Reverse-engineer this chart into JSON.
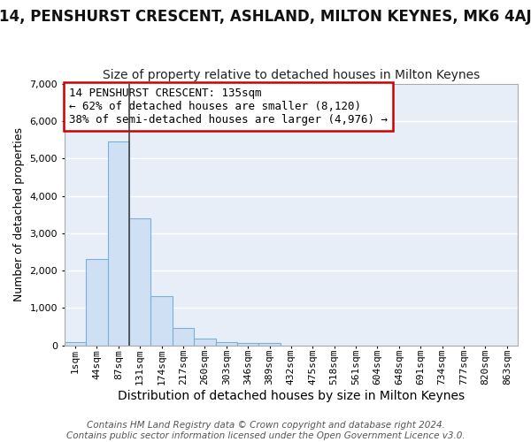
{
  "title": "14, PENSHURST CRESCENT, ASHLAND, MILTON KEYNES, MK6 4AJ",
  "subtitle": "Size of property relative to detached houses in Milton Keynes",
  "xlabel": "Distribution of detached houses by size in Milton Keynes",
  "ylabel": "Number of detached properties",
  "footer_line1": "Contains HM Land Registry data © Crown copyright and database right 2024.",
  "footer_line2": "Contains public sector information licensed under the Open Government Licence v3.0.",
  "categories": [
    "1sqm",
    "44sqm",
    "87sqm",
    "131sqm",
    "174sqm",
    "217sqm",
    "260sqm",
    "303sqm",
    "346sqm",
    "389sqm",
    "432sqm",
    "475sqm",
    "518sqm",
    "561sqm",
    "604sqm",
    "648sqm",
    "691sqm",
    "734sqm",
    "777sqm",
    "820sqm",
    "863sqm"
  ],
  "values": [
    100,
    2300,
    5450,
    3400,
    1320,
    460,
    190,
    90,
    70,
    55,
    0,
    0,
    0,
    0,
    0,
    0,
    0,
    0,
    0,
    0,
    0
  ],
  "bar_color": "#cfe0f4",
  "bar_edge_color": "#7ab0d8",
  "annotation_text": "14 PENSHURST CRESCENT: 135sqm\n← 62% of detached houses are smaller (8,120)\n38% of semi-detached houses are larger (4,976) →",
  "annotation_box_color": "white",
  "annotation_box_edge_color": "#cc0000",
  "vline_x": 3.0,
  "vline_color": "#444444",
  "ylim": [
    0,
    7000
  ],
  "yticks": [
    0,
    1000,
    2000,
    3000,
    4000,
    5000,
    6000,
    7000
  ],
  "background_color": "#ffffff",
  "plot_bg_color": "#e8eef8",
  "grid_color": "#ffffff",
  "title_fontsize": 12,
  "subtitle_fontsize": 10,
  "xlabel_fontsize": 10,
  "ylabel_fontsize": 9,
  "tick_fontsize": 8,
  "annotation_fontsize": 9,
  "footer_fontsize": 7.5
}
